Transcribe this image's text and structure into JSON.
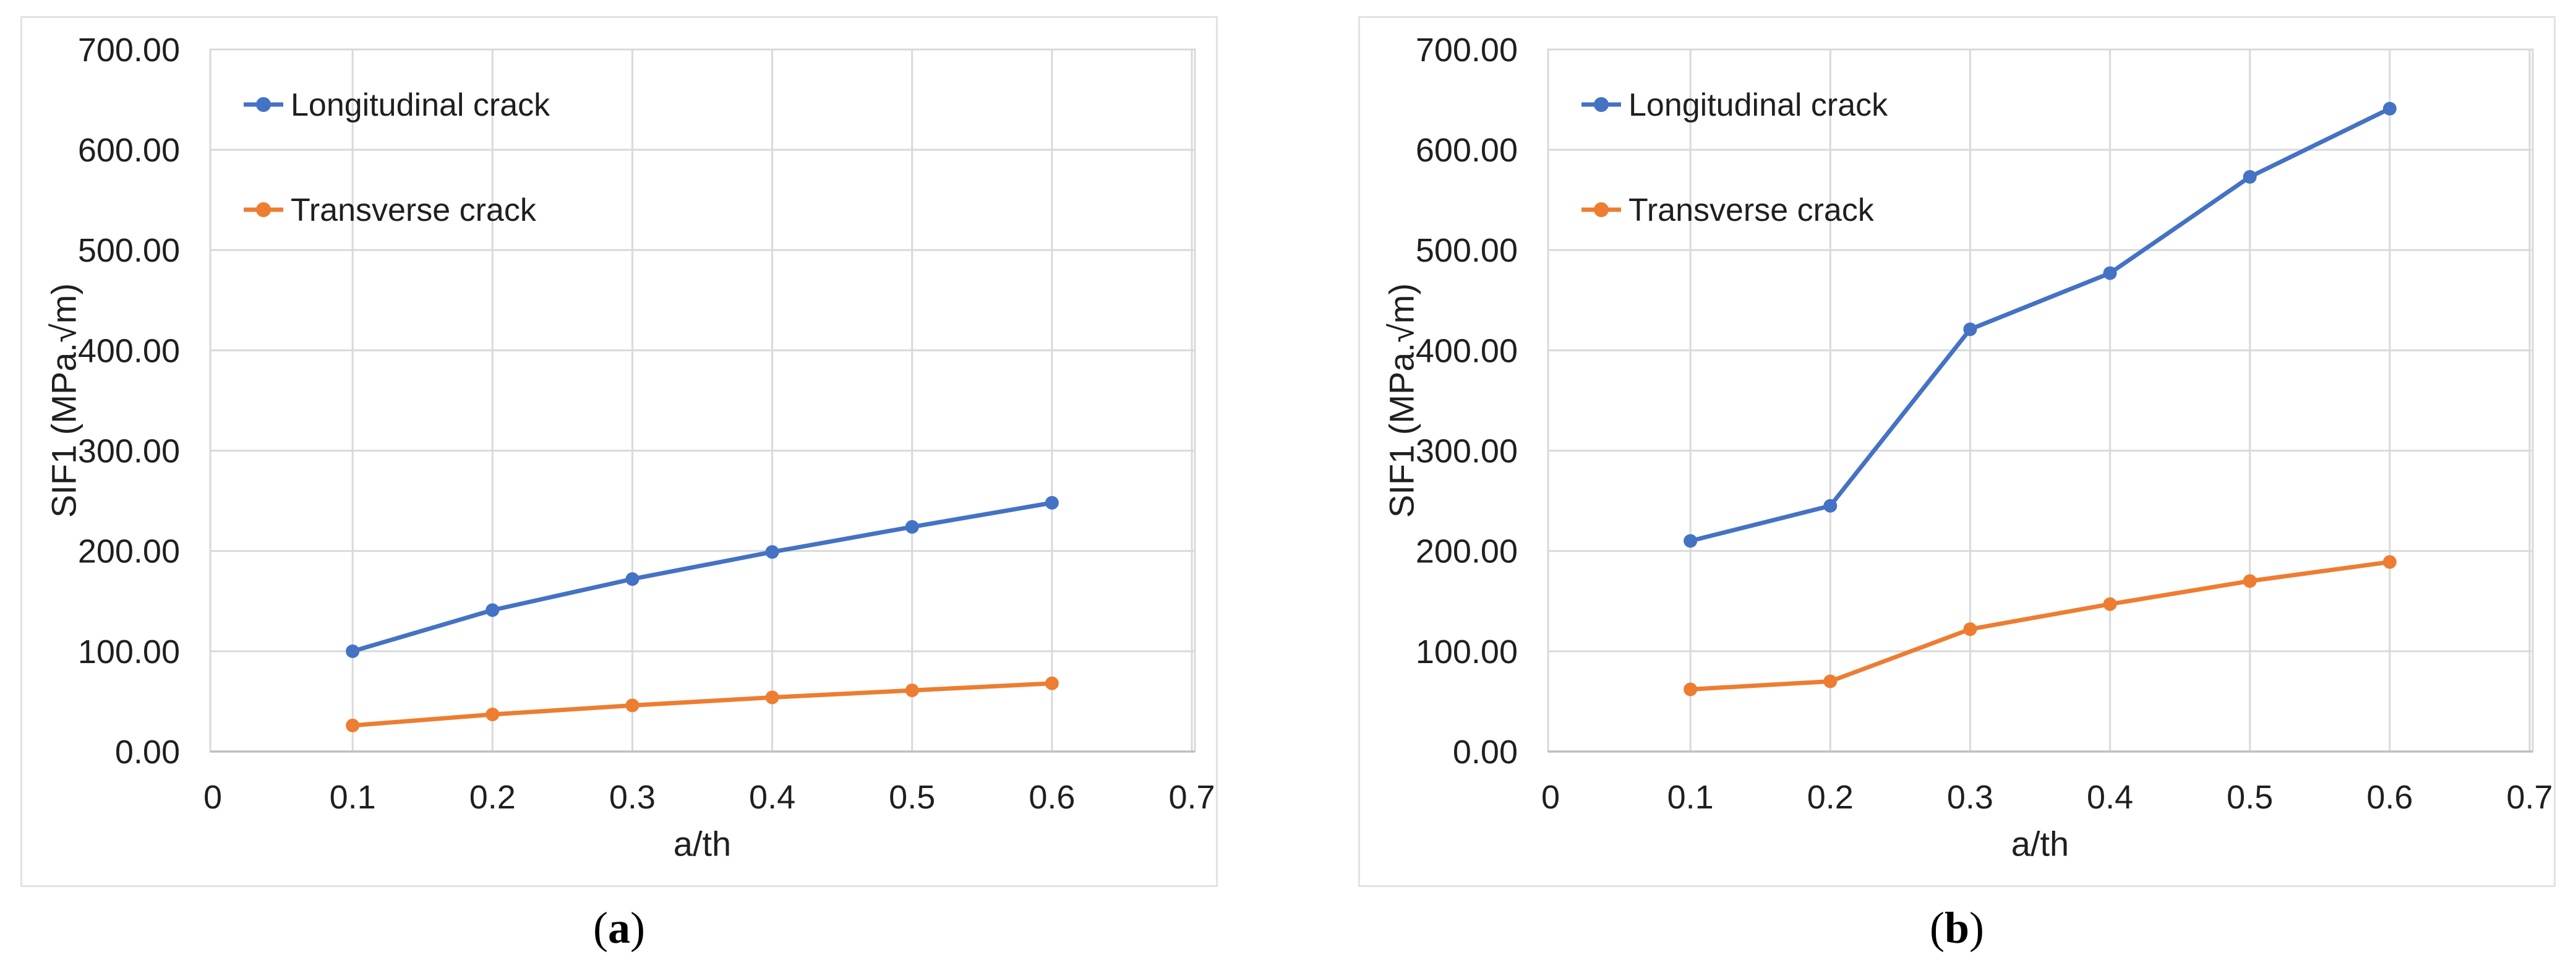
{
  "figure": {
    "background": "#ffffff",
    "border_color": "#e2e2e2",
    "gridline_color": "#d9d9d9",
    "axis_line_color": "#bfbfbf",
    "text_color": "#1f1f1f",
    "caption_color": "#000000"
  },
  "captions": [
    {
      "open": "(",
      "letter": "a",
      "close": ")"
    },
    {
      "open": "(",
      "letter": "b",
      "close": ")"
    }
  ],
  "chart_data": [
    {
      "id": "a",
      "type": "line",
      "title": "",
      "xlabel": "a/th",
      "ylabel": "SIF1 (MPa.√m)",
      "xlim": [
        0,
        0.7
      ],
      "ylim": [
        0,
        700
      ],
      "grid": true,
      "legend_position": "top-left-inside",
      "x_tick_labels": [
        "0",
        "0.1",
        "0.2",
        "0.3",
        "0.4",
        "0.5",
        "0.6",
        "0.7"
      ],
      "y_tick_labels": [
        "0.00",
        "100.00",
        "200.00",
        "300.00",
        "400.00",
        "500.00",
        "600.00",
        "700.00"
      ],
      "x": [
        0.1,
        0.2,
        0.3,
        0.4,
        0.5,
        0.6
      ],
      "series": [
        {
          "name": "Longitudinal crack",
          "color": "#4472C4",
          "marker": "circle",
          "values": [
            100,
            141,
            172,
            199,
            224,
            248
          ]
        },
        {
          "name": "Transverse crack",
          "color": "#ED7D31",
          "marker": "circle",
          "values": [
            26,
            37,
            46,
            54,
            61,
            68
          ]
        }
      ]
    },
    {
      "id": "b",
      "type": "line",
      "title": "",
      "xlabel": "a/th",
      "ylabel": "SIF1 (MPa.√m)",
      "xlim": [
        0,
        0.7
      ],
      "ylim": [
        0,
        700
      ],
      "grid": true,
      "legend_position": "top-left-inside",
      "x_tick_labels": [
        "0",
        "0.1",
        "0.2",
        "0.3",
        "0.4",
        "0.5",
        "0.6",
        "0.7"
      ],
      "y_tick_labels": [
        "0.00",
        "100.00",
        "200.00",
        "300.00",
        "400.00",
        "500.00",
        "600.00",
        "700.00"
      ],
      "x": [
        0.1,
        0.2,
        0.3,
        0.4,
        0.5,
        0.6
      ],
      "series": [
        {
          "name": "Longitudinal crack",
          "color": "#4472C4",
          "marker": "circle",
          "values": [
            210,
            245,
            421,
            477,
            573,
            641
          ]
        },
        {
          "name": "Transverse crack",
          "color": "#ED7D31",
          "marker": "circle",
          "values": [
            62,
            70,
            122,
            147,
            170,
            189
          ]
        }
      ]
    }
  ]
}
